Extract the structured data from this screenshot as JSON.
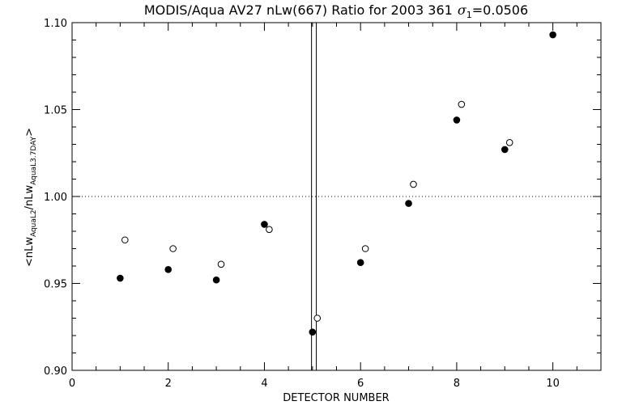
{
  "chart_data": {
    "type": "scatter",
    "title": "MODIS/Aqua AV27 nLw(667) Ratio for 2003 361",
    "title_sigma": "σ",
    "title_sigma_sub": "1",
    "title_sigma_value": "=0.0506",
    "xlabel": "DETECTOR NUMBER",
    "ylabel_parts": {
      "open": "<nLw",
      "sub1": "AquaL2",
      "mid": "/nLw",
      "sub2": "AquaL3.7DAY",
      "close": ">"
    },
    "xlim": [
      0,
      11
    ],
    "ylim": [
      0.9,
      1.1
    ],
    "x_ticks": [
      0,
      2,
      4,
      6,
      8,
      10
    ],
    "x_tick_labels": [
      "0",
      "2",
      "4",
      "6",
      "8",
      "10"
    ],
    "x_minor_ticks": [
      0.5,
      1,
      1.5,
      2.5,
      3,
      3.5,
      4.5,
      5,
      5.5,
      6.5,
      7,
      7.5,
      8.5,
      9,
      9.5,
      10.5
    ],
    "y_ticks": [
      0.9,
      0.95,
      1.0,
      1.05,
      1.1
    ],
    "y_tick_labels": [
      "0.90",
      "0.95",
      "1.00",
      "1.05",
      "1.10"
    ],
    "y_minor_ticks": [
      0.91,
      0.92,
      0.93,
      0.94,
      0.96,
      0.97,
      0.98,
      0.99,
      1.01,
      1.02,
      1.03,
      1.04,
      1.06,
      1.07,
      1.08,
      1.09
    ],
    "reference_line": {
      "y": 1.0,
      "style": "dotted"
    },
    "vertical_lines": [
      4.98,
      5.08
    ],
    "grid": false,
    "series": [
      {
        "marker": "filled-circle",
        "color": "#000000",
        "x": [
          1,
          2,
          3,
          4,
          5,
          6,
          7,
          8,
          9,
          10
        ],
        "y": [
          0.953,
          0.958,
          0.952,
          0.984,
          0.922,
          0.962,
          0.996,
          1.044,
          1.027,
          1.093
        ]
      },
      {
        "marker": "open-circle",
        "color": "#000000",
        "x": [
          1.1,
          2.1,
          3.1,
          4.1,
          5.1,
          6.1,
          7.1,
          8.1,
          9.1
        ],
        "y": [
          0.975,
          0.97,
          0.961,
          0.981,
          0.93,
          0.97,
          1.007,
          1.053,
          1.031
        ]
      }
    ]
  }
}
